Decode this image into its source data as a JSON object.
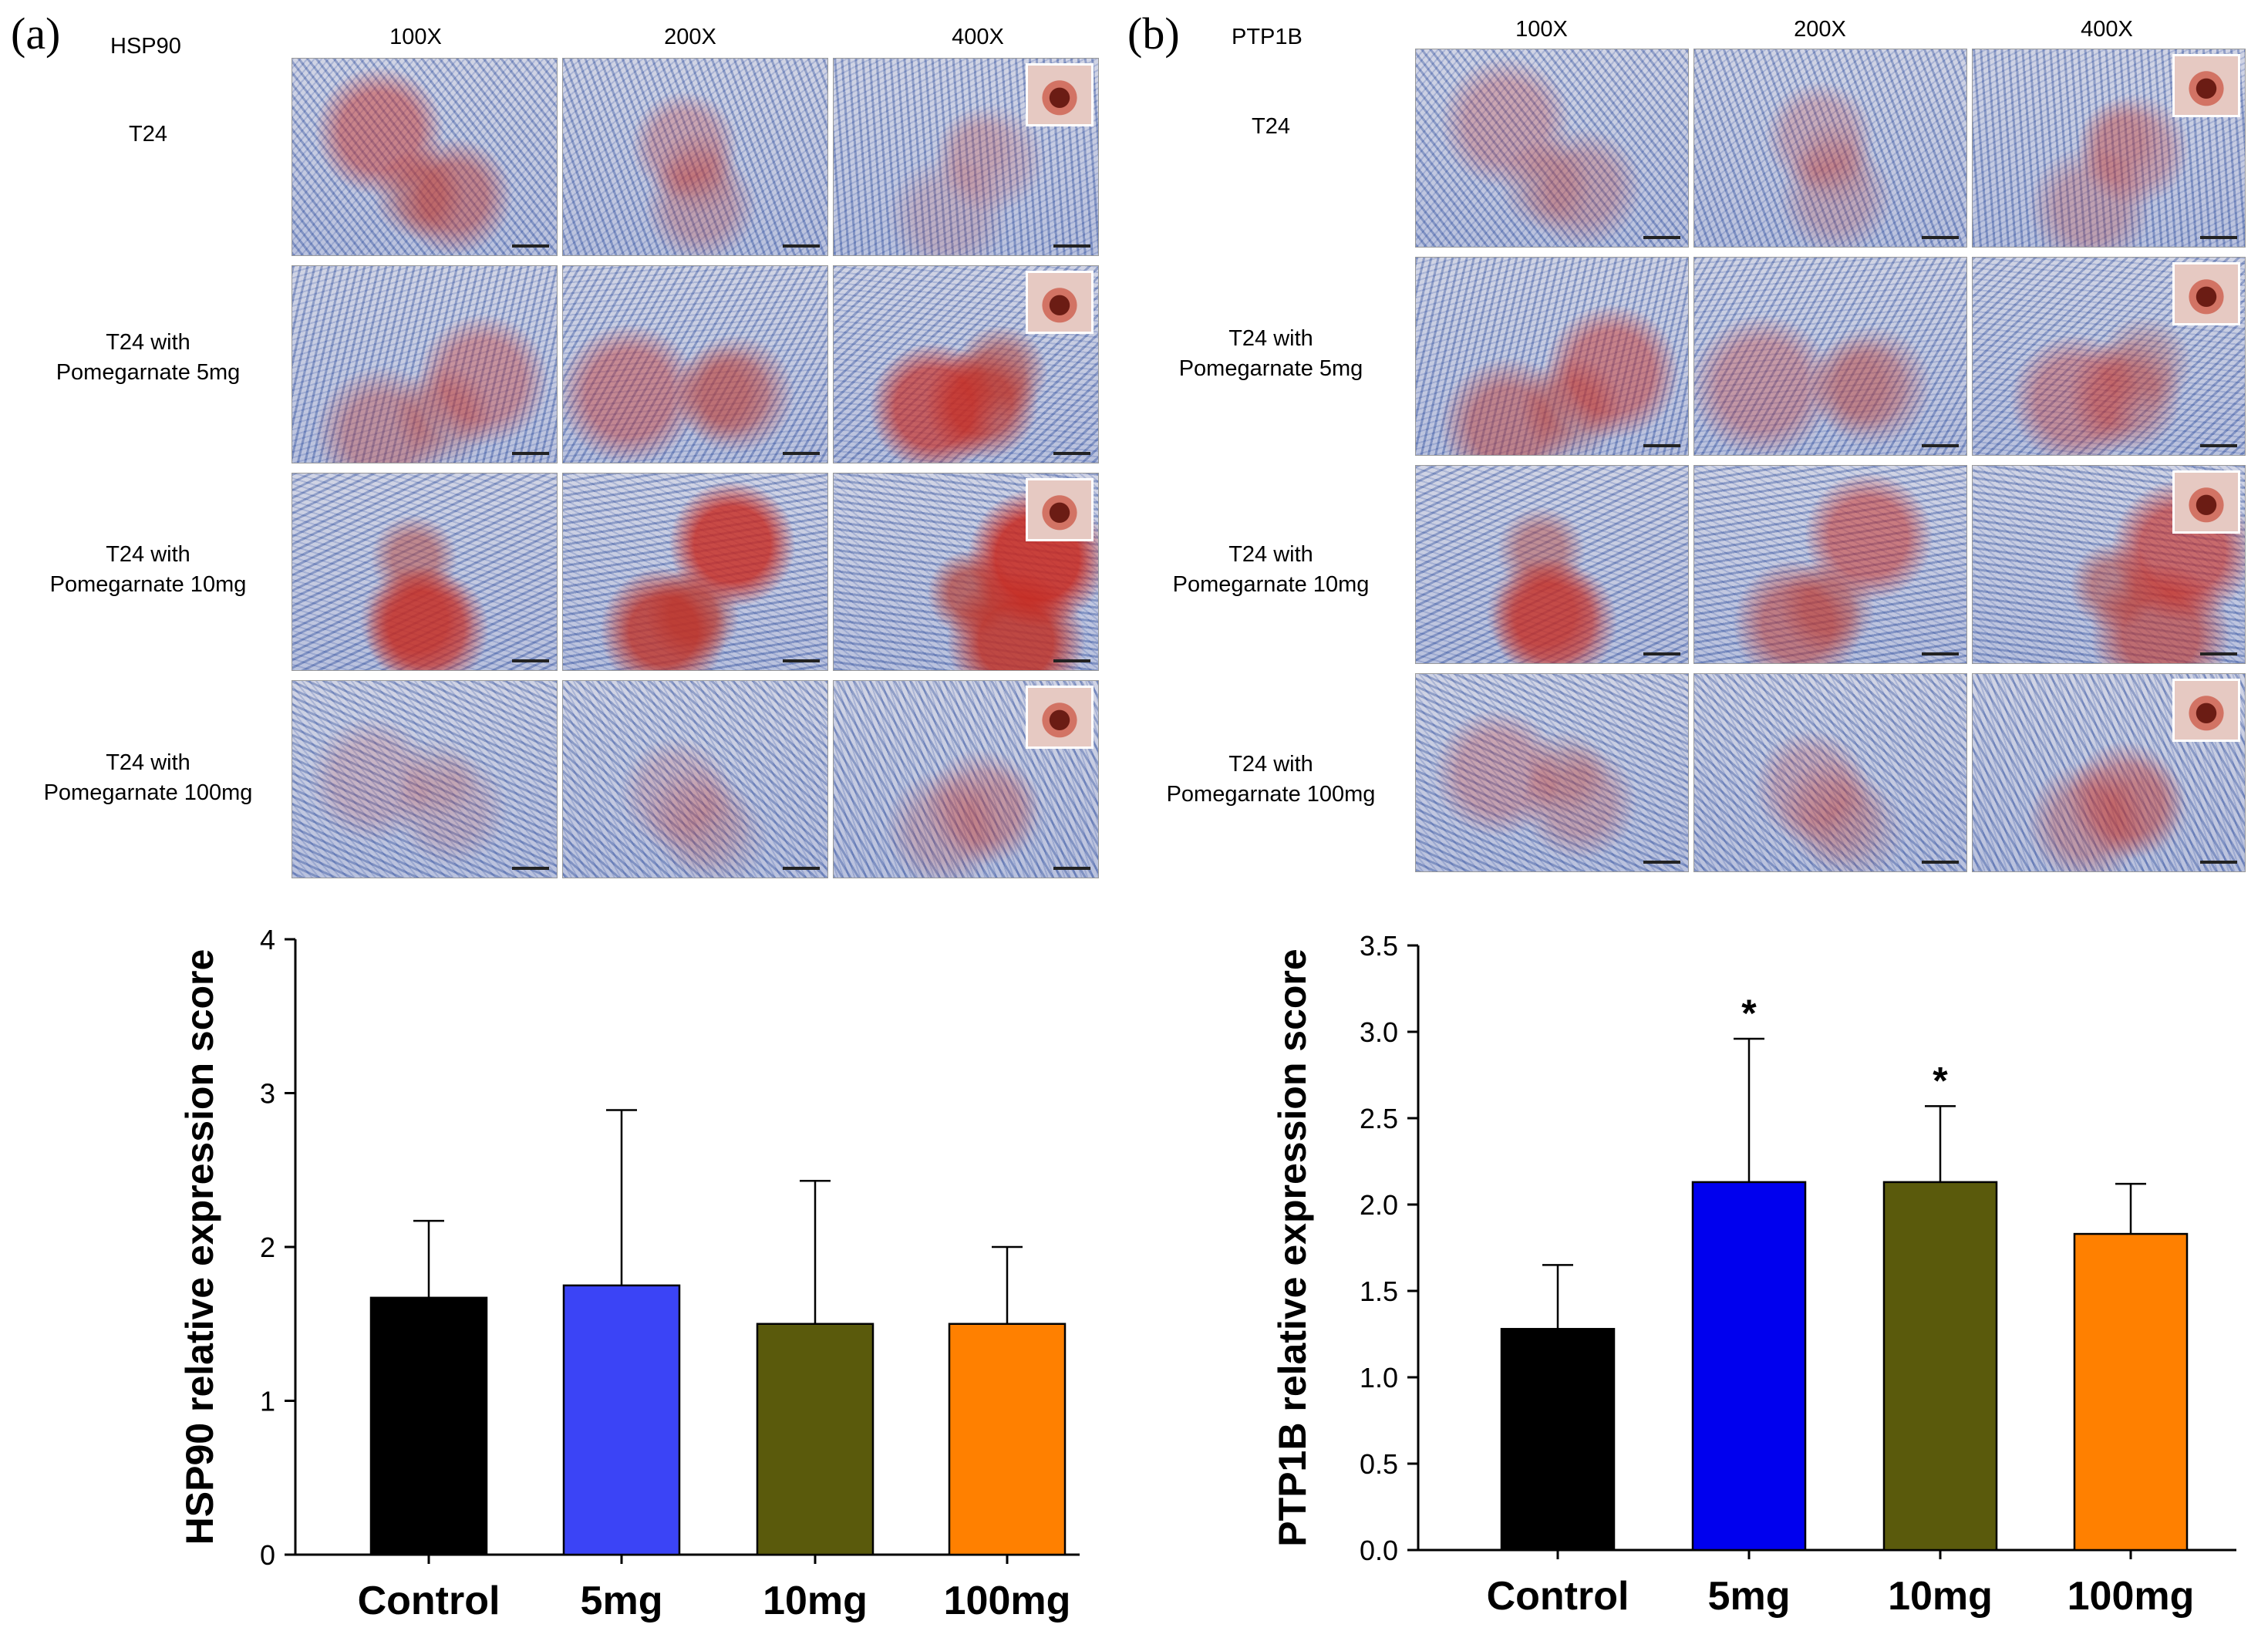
{
  "panel_a": {
    "letter": "(a)",
    "marker": "HSP90",
    "magnifications": [
      "100X",
      "200X",
      "400X"
    ],
    "rows": [
      {
        "line1": "T24",
        "line2": ""
      },
      {
        "line1": "T24 with",
        "line2": "Pomegarnate 5mg"
      },
      {
        "line1": "T24 with",
        "line2": "Pomegarnate 10mg"
      },
      {
        "line1": "T24 with",
        "line2": "Pomegarnate 100mg"
      }
    ]
  },
  "panel_b": {
    "letter": "(b)",
    "marker": "PTP1B",
    "magnifications": [
      "100X",
      "200X",
      "400X"
    ],
    "rows": [
      {
        "line1": "T24",
        "line2": ""
      },
      {
        "line1": "T24 with",
        "line2": "Pomegarnate 5mg"
      },
      {
        "line1": "T24 with",
        "line2": "Pomegarnate 10mg"
      },
      {
        "line1": "T24 with",
        "line2": "Pomegarnate 100mg"
      }
    ]
  },
  "stain_levels_a": [
    [
      0.45,
      0.25,
      0.15
    ],
    [
      0.35,
      0.4,
      0.65
    ],
    [
      0.6,
      0.8,
      0.85
    ],
    [
      0.15,
      0.15,
      0.2
    ]
  ],
  "stain_levels_b": [
    [
      0.25,
      0.2,
      0.25
    ],
    [
      0.45,
      0.3,
      0.35
    ],
    [
      0.55,
      0.5,
      0.6
    ],
    [
      0.25,
      0.2,
      0.3
    ]
  ],
  "chart_data": [
    {
      "type": "bar",
      "title": "",
      "ylabel": "HSP90 relative expression score",
      "xlabel": "",
      "categories": [
        "Control",
        "5mg",
        "10mg",
        "100mg"
      ],
      "values": [
        1.67,
        1.75,
        1.5,
        1.5
      ],
      "errors": [
        0.5,
        1.14,
        0.93,
        0.5
      ],
      "significance": [
        "",
        "",
        "",
        ""
      ],
      "colors": [
        "#000000",
        "#3b44f6",
        "#5a5a0c",
        "#ff8000"
      ],
      "ylim": [
        0,
        4
      ],
      "yticks": [
        "0",
        "1",
        "2",
        "3",
        "4"
      ],
      "grid": false
    },
    {
      "type": "bar",
      "title": "",
      "ylabel": "PTP1B relative expression score",
      "xlabel": "",
      "categories": [
        "Control",
        "5mg",
        "10mg",
        "100mg"
      ],
      "values": [
        1.28,
        2.13,
        2.13,
        1.83
      ],
      "errors": [
        0.37,
        0.83,
        0.44,
        0.29
      ],
      "significance": [
        "",
        "*",
        "*",
        ""
      ],
      "colors": [
        "#000000",
        "#0000ee",
        "#5a5a0c",
        "#ff8000"
      ],
      "ylim": [
        0,
        3.5
      ],
      "yticks": [
        "0.0",
        "0.5",
        "1.0",
        "1.5",
        "2.0",
        "2.5",
        "3.0",
        "3.5"
      ],
      "grid": false
    }
  ]
}
